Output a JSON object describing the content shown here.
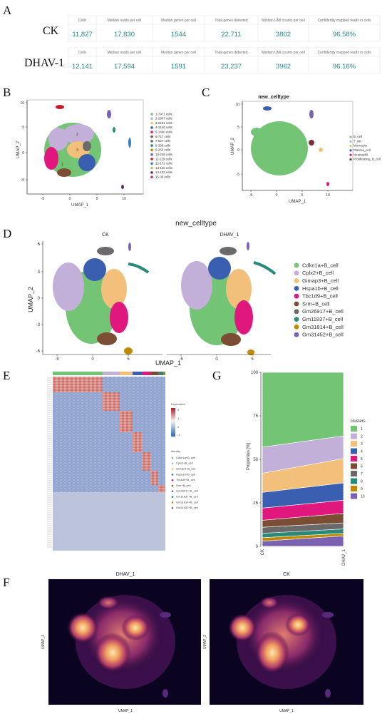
{
  "figure": {
    "panel_labels": {
      "A": "A",
      "B": "B",
      "C": "C",
      "D": "D",
      "E": "E",
      "F": "F",
      "G": "G"
    }
  },
  "panelA": {
    "headers": [
      "Cells",
      "Median reads per cell",
      "Median genes per cell",
      "Total genes detected",
      "Median UMI counts per cell",
      "Confidently mapped reads in cells"
    ],
    "rows": [
      {
        "sample": "CK",
        "values": [
          "11,827",
          "17,830",
          "1544",
          "22,711",
          "3802",
          "96.58%"
        ]
      },
      {
        "sample": "DHAV-1",
        "values": [
          "12,141",
          "17,594",
          "1591",
          "23,237",
          "3962",
          "96.16%"
        ]
      }
    ]
  },
  "panelB": {
    "xlabel": "UMAP_1",
    "ylabel": "UMAP_2",
    "xticks": [
      "-5",
      "0",
      "5",
      "10"
    ],
    "yticks": [
      "10",
      "5",
      "0",
      "-5"
    ],
    "legend": [
      {
        "label": "1-7971 cells",
        "color": "#74c476"
      },
      {
        "label": "2-2907 cells",
        "color": "#c3b0d8"
      },
      {
        "label": "3-2181 cells",
        "color": "#f2c07a"
      },
      {
        "label": "4-2140 cells",
        "color": "#3a5fb0"
      },
      {
        "label": "5-1440 cells",
        "color": "#e0187e"
      },
      {
        "label": "6-717 cells",
        "color": "#7b4d35"
      },
      {
        "label": "7-527 cells",
        "color": "#6a6a6a"
      },
      {
        "label": "8-338 cells",
        "color": "#2a8a7a"
      },
      {
        "label": "9-255 cells",
        "color": "#c08a00"
      },
      {
        "label": "10-248 cells",
        "color": "#7a62b0"
      },
      {
        "label": "11-219 cells",
        "color": "#c81b2a"
      },
      {
        "label": "12-172 cells",
        "color": "#3b7ec0"
      },
      {
        "label": "13-146 cells",
        "color": "#b0c07a"
      },
      {
        "label": "14-103 cells",
        "color": "#5a3060"
      },
      {
        "label": "15-39 cells",
        "color": "#c23280"
      }
    ]
  },
  "panelC": {
    "title": "new_celltype",
    "xlabel": "UMAP_1",
    "ylabel": "UMAP_2",
    "xticks": [
      "-5",
      "0",
      "5",
      "10"
    ],
    "yticks": [
      "10",
      "5",
      "0",
      "-5"
    ],
    "legend": [
      {
        "label": "B_cell",
        "color": "#74c476"
      },
      {
        "label": "T_NK",
        "color": "#c3b0d8"
      },
      {
        "label": "Monocyte",
        "color": "#f2c07a"
      },
      {
        "label": "Plasma_cell",
        "color": "#3a5fb0"
      },
      {
        "label": "Neutrophil",
        "color": "#e0187e"
      },
      {
        "label": "Proliferating_B_cell",
        "color": "#7b2d35"
      }
    ]
  },
  "panelD": {
    "title": "new_celltype",
    "left_title": "CK",
    "right_title": "DHAV_1",
    "xlabel": "UMAP_1",
    "ylabel": "UMAP_2",
    "xticks": [
      "-5",
      "0",
      "5"
    ],
    "yticks": [
      "6",
      "3",
      "0",
      "-3",
      "-6"
    ],
    "legend": [
      {
        "label": "Cdkn1a+B_cell",
        "color": "#74c476"
      },
      {
        "label": "Cplx2+B_cell",
        "color": "#c3b0d8"
      },
      {
        "label": "Gimap3+B_cell",
        "color": "#f2c07a"
      },
      {
        "label": "Hspa1b+B_cell",
        "color": "#3a5fb0"
      },
      {
        "label": "Tbc1d9+B_cell",
        "color": "#e0187e"
      },
      {
        "label": "Srm+B_cell",
        "color": "#7b4d35"
      },
      {
        "label": "Gm26917+B_cell",
        "color": "#6a6a6a"
      },
      {
        "label": "Gm11837+B_cell",
        "color": "#2a8a7a"
      },
      {
        "label": "Gm31814+B_cell",
        "color": "#c08a00"
      },
      {
        "label": "Gm31452+B_cell",
        "color": "#7a62b0"
      }
    ]
  },
  "panelE": {
    "expression_title": "Expression",
    "expression_ticks": [
      "2",
      "1",
      "0",
      "-1"
    ],
    "identity_title": "Identity",
    "identity": [
      {
        "label": "Cdkn1a+B_cell",
        "color": "#74c476"
      },
      {
        "label": "Cplx2+B_cell",
        "color": "#c3b0d8"
      },
      {
        "label": "Gimap3+B_cell",
        "color": "#f2c07a"
      },
      {
        "label": "Hspa1b+B_cell",
        "color": "#3a5fb0"
      },
      {
        "label": "Tbc1d9+B_cell",
        "color": "#e0187e"
      },
      {
        "label": "Srm+B_cell",
        "color": "#7b4d35"
      },
      {
        "label": "Gm26917+B_cell",
        "color": "#6a6a6a"
      },
      {
        "label": "Gm11837+B_cell",
        "color": "#2a8a7a"
      },
      {
        "label": "Gm31814+B_cell",
        "color": "#c08a00"
      },
      {
        "label": "Gm31452+B_cell",
        "color": "#7a62b0"
      }
    ]
  },
  "panelF": {
    "left_title": "DHAV_1",
    "right_title": "CK",
    "xlabel": "UMAP_1",
    "ylabel": "UMAP_2"
  },
  "chart_data": {
    "type": "area",
    "ylabel": "Proportion [%]",
    "ylim": [
      0,
      100
    ],
    "yticks": [
      "100",
      "75",
      "50",
      "25",
      "0"
    ],
    "categories": [
      "CK",
      "DHAV_1"
    ],
    "legend_title": "clusters",
    "legend_position": "right",
    "series": [
      {
        "name": "1",
        "color": "#74c476",
        "values": [
          43.0,
          36.5
        ]
      },
      {
        "name": "2",
        "color": "#c3b0d8",
        "values": [
          15.0,
          13.0
        ]
      },
      {
        "name": "3",
        "color": "#f2c07a",
        "values": [
          11.0,
          14.0
        ]
      },
      {
        "name": "4",
        "color": "#3a5fb0",
        "values": [
          9.0,
          10.0
        ]
      },
      {
        "name": "5",
        "color": "#e0187e",
        "values": [
          7.0,
          7.5
        ]
      },
      {
        "name": "6",
        "color": "#7b4d35",
        "values": [
          4.0,
          5.5
        ]
      },
      {
        "name": "7",
        "color": "#6a6a6a",
        "values": [
          3.5,
          3.5
        ]
      },
      {
        "name": "8",
        "color": "#2a8a7a",
        "values": [
          2.5,
          2.5
        ]
      },
      {
        "name": "9",
        "color": "#c08a00",
        "values": [
          2.0,
          1.5
        ]
      },
      {
        "name": "10",
        "color": "#7a62b0",
        "values": [
          3.0,
          6.0
        ]
      }
    ]
  }
}
